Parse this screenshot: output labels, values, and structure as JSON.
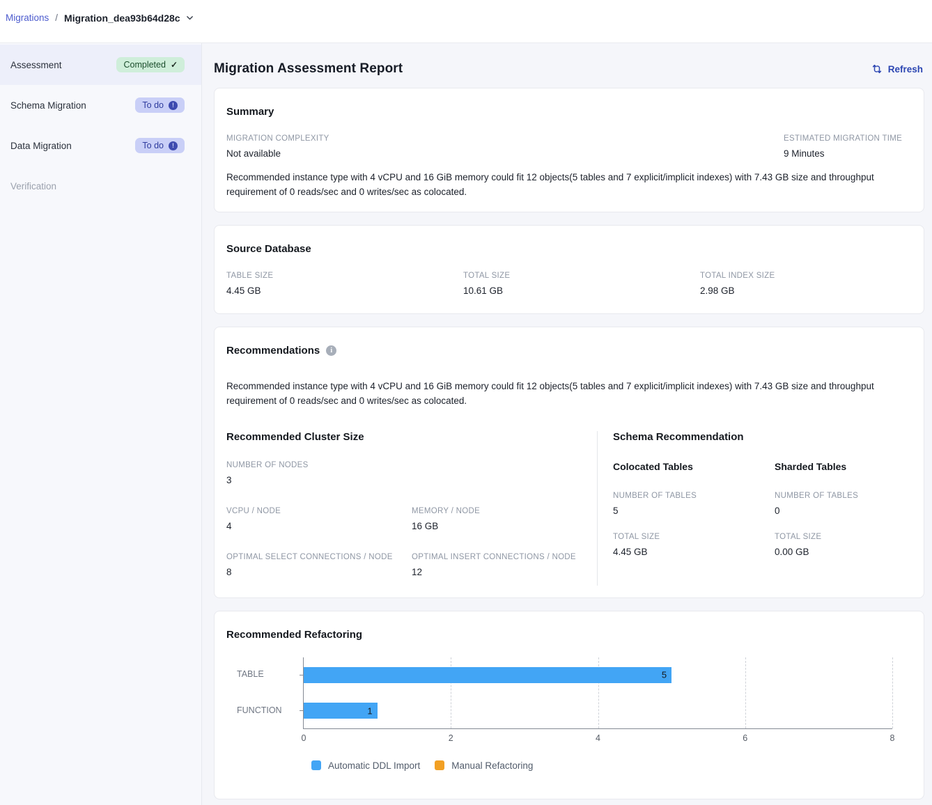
{
  "breadcrumb": {
    "parent": "Migrations",
    "separator": "/",
    "current": "Migration_dea93b64d28c"
  },
  "sidebar": {
    "items": [
      {
        "label": "Assessment",
        "badge": "Completed",
        "state": "completed"
      },
      {
        "label": "Schema Migration",
        "badge": "To do",
        "state": "todo"
      },
      {
        "label": "Data Migration",
        "badge": "To do",
        "state": "todo"
      },
      {
        "label": "Verification",
        "badge": "",
        "state": "disabled"
      }
    ]
  },
  "header": {
    "title": "Migration Assessment Report",
    "refresh_label": "Refresh"
  },
  "summary": {
    "title": "Summary",
    "complexity_label": "MIGRATION COMPLEXITY",
    "complexity_value": "Not available",
    "time_label": "ESTIMATED MIGRATION TIME",
    "time_value": "9 Minutes",
    "description": "Recommended instance type with 4 vCPU and 16 GiB memory could fit 12 objects(5 tables and 7 explicit/implicit indexes) with 7.43 GB size and throughput requirement of 0 reads/sec and 0 writes/sec as colocated."
  },
  "source_database": {
    "title": "Source Database",
    "fields": [
      {
        "label": "TABLE SIZE",
        "value": "4.45 GB"
      },
      {
        "label": "TOTAL SIZE",
        "value": "10.61 GB"
      },
      {
        "label": "TOTAL INDEX SIZE",
        "value": "2.98 GB"
      }
    ]
  },
  "recommendations": {
    "title": "Recommendations",
    "description": "Recommended instance type with 4 vCPU and 16 GiB memory could fit 12 objects(5 tables and 7 explicit/implicit indexes) with 7.43 GB size and throughput requirement of 0 reads/sec and 0 writes/sec as colocated.",
    "cluster": {
      "title": "Recommended Cluster Size",
      "fields": [
        {
          "label": "NUMBER OF NODES",
          "value": "3"
        },
        {
          "label": "VCPU / NODE",
          "value": "4"
        },
        {
          "label": "MEMORY / NODE",
          "value": "16 GB"
        },
        {
          "label": "OPTIMAL SELECT CONNECTIONS / NODE",
          "value": "8"
        },
        {
          "label": "OPTIMAL INSERT CONNECTIONS / NODE",
          "value": "12"
        }
      ]
    },
    "schema": {
      "title": "Schema Recommendation",
      "columns": [
        {
          "title": "Colocated Tables",
          "fields": [
            {
              "label": "NUMBER OF TABLES",
              "value": "5"
            },
            {
              "label": "TOTAL SIZE",
              "value": "4.45 GB"
            }
          ]
        },
        {
          "title": "Sharded Tables",
          "fields": [
            {
              "label": "NUMBER OF TABLES",
              "value": "0"
            },
            {
              "label": "TOTAL SIZE",
              "value": "0.00 GB"
            }
          ]
        }
      ]
    }
  },
  "refactoring": {
    "title": "Recommended Refactoring",
    "chart_data": {
      "type": "bar",
      "orientation": "horizontal",
      "categories": [
        "TABLE",
        "FUNCTION"
      ],
      "series": [
        {
          "name": "Automatic DDL Import",
          "color": "#42A5F5",
          "values": [
            5,
            1
          ]
        },
        {
          "name": "Manual Refactoring",
          "color": "#F2A024",
          "values": [
            0,
            0
          ]
        }
      ],
      "xlim": [
        0,
        8
      ],
      "xticks": [
        0,
        2,
        4,
        6,
        8
      ],
      "grid": "dashed-vertical",
      "legend_position": "bottom"
    }
  },
  "colors": {
    "accent_refresh": "#2c46b2",
    "breadcrumb_link": "#4d5cce",
    "badge_completed_bg": "#cfeeda",
    "badge_completed_text": "#1c4e2d",
    "badge_todo_bg": "#c9cff7",
    "badge_todo_text": "#2f3c9e",
    "bar_blue": "#42A5F5",
    "bar_orange": "#F2A024"
  }
}
